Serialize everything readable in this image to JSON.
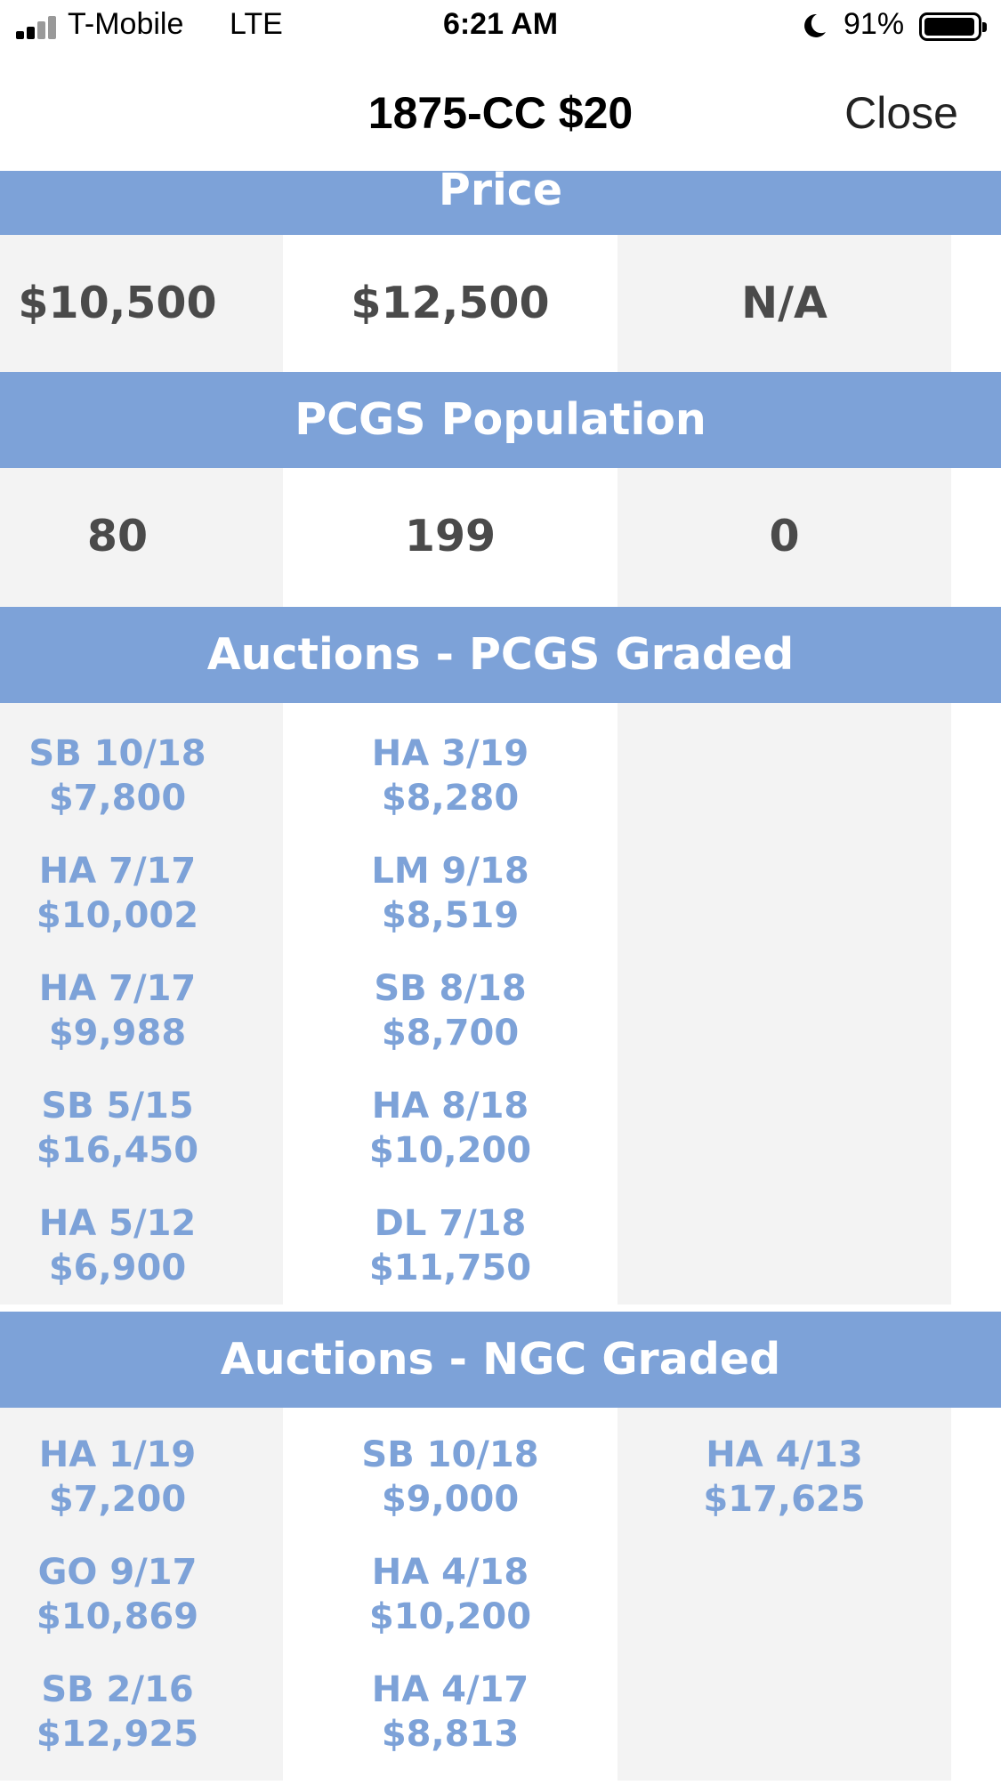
{
  "status_bar": {
    "carrier": "T-Mobile",
    "network": "LTE",
    "time": "6:21 AM",
    "battery_percent": "91%",
    "icons": [
      "signal-icon",
      "moon-icon",
      "battery-icon"
    ]
  },
  "nav": {
    "title": "1875-CC $20",
    "close_label": "Close"
  },
  "colors": {
    "header_blue": "#7da2d8",
    "value_gray": "#4a4a4a",
    "column_gray": "#f3f3f3"
  },
  "price": {
    "header": "Price",
    "values": [
      "$10,500",
      "$12,500",
      "N/A"
    ]
  },
  "population": {
    "header": "PCGS Population",
    "values": [
      "80",
      "199",
      "0"
    ]
  },
  "pcgs_auctions": {
    "header": "Auctions - PCGS Graded",
    "columns": [
      [
        {
          "sale": "SB 10/18",
          "price": "$7,800"
        },
        {
          "sale": "HA 7/17",
          "price": "$10,002"
        },
        {
          "sale": "HA 7/17",
          "price": "$9,988"
        },
        {
          "sale": "SB 5/15",
          "price": "$16,450"
        },
        {
          "sale": "HA 5/12",
          "price": "$6,900"
        }
      ],
      [
        {
          "sale": "HA 3/19",
          "price": "$8,280"
        },
        {
          "sale": "LM 9/18",
          "price": "$8,519"
        },
        {
          "sale": "SB 8/18",
          "price": "$8,700"
        },
        {
          "sale": "HA 8/18",
          "price": "$10,200"
        },
        {
          "sale": "DL 7/18",
          "price": "$11,750"
        }
      ],
      []
    ]
  },
  "ngc_auctions": {
    "header": "Auctions - NGC Graded",
    "columns": [
      [
        {
          "sale": "HA 1/19",
          "price": "$7,200"
        },
        {
          "sale": "GO 9/17",
          "price": "$10,869"
        },
        {
          "sale": "SB 2/16",
          "price": "$12,925"
        }
      ],
      [
        {
          "sale": "SB 10/18",
          "price": "$9,000"
        },
        {
          "sale": "HA 4/18",
          "price": "$10,200"
        },
        {
          "sale": "HA 4/17",
          "price": "$8,813"
        }
      ],
      [
        {
          "sale": "HA 4/13",
          "price": "$17,625"
        }
      ]
    ]
  }
}
